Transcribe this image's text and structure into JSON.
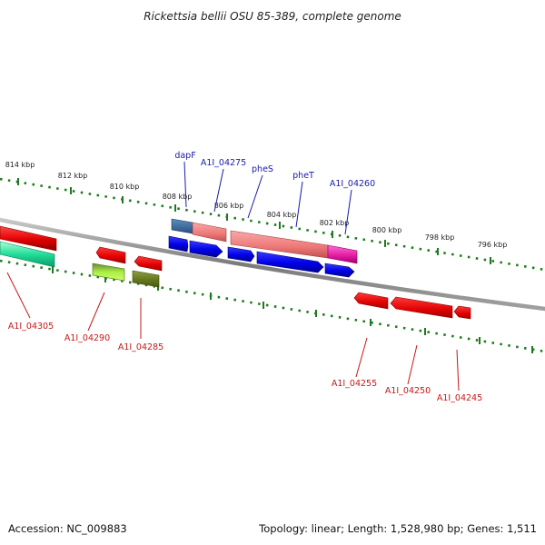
{
  "title": "Rickettsia bellii OSU 85-389, complete genome",
  "footer": {
    "accession": "Accession: NC_009883",
    "summary": "Topology: linear; Length: 1,528,980 bp; Genes: 1,511"
  },
  "scale_labels": [
    "814 kbp",
    "812 kbp",
    "810 kbp",
    "808 kbp",
    "806 kbp",
    "804 kbp",
    "802 kbp",
    "800 kbp",
    "798 kbp",
    "796 kbp"
  ],
  "upper_gene_labels": [
    "dapF",
    "A1I_04275",
    "pheS",
    "pheT",
    "A1I_04260"
  ],
  "lower_gene_labels": [
    "A1I_04305",
    "A1I_04290",
    "A1I_04285",
    "A1I_04255",
    "A1I_04250",
    "A1I_04245"
  ],
  "colors": {
    "upper_labels": "#1a1aa8",
    "lower_labels": "#c41818",
    "ticks": "#1e7a1e",
    "backbone": "#8a8a8a"
  }
}
